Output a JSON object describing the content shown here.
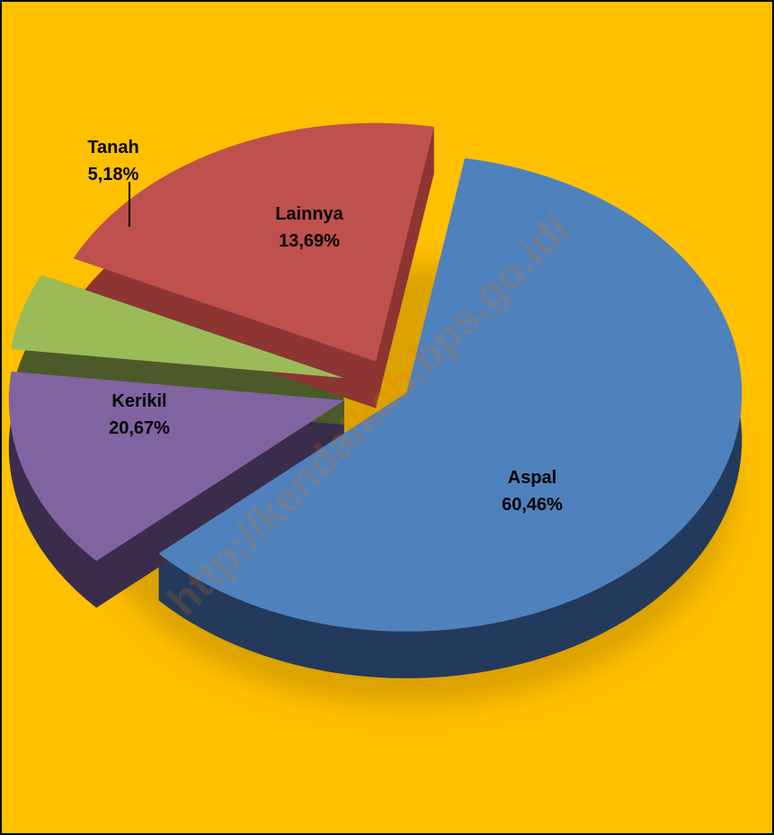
{
  "chart_data": {
    "type": "pie",
    "style": "3d-exploded",
    "title": "",
    "slices": [
      {
        "label": "Aspal",
        "value": 60.46,
        "value_text": "60,46%",
        "color": "#4F81BD",
        "side_color": "#243A5C"
      },
      {
        "label": "Lainnya",
        "value": 13.69,
        "value_text": "13,69%",
        "color": "#8064A2",
        "side_color": "#3A2D4C"
      },
      {
        "label": "Tanah",
        "value": 5.18,
        "value_text": "5,18%",
        "color": "#9BBB59",
        "side_color": "#4B5A28"
      },
      {
        "label": "Kerikil",
        "value": 20.67,
        "value_text": "20,67%",
        "color": "#C0504D",
        "side_color": "#8C3533"
      }
    ],
    "legend": "none",
    "data_labels": "inside slices; Tanah label outside with leader line"
  },
  "background_color": "#FFC000",
  "watermark": "http://kendalkab.bps.go.id/"
}
